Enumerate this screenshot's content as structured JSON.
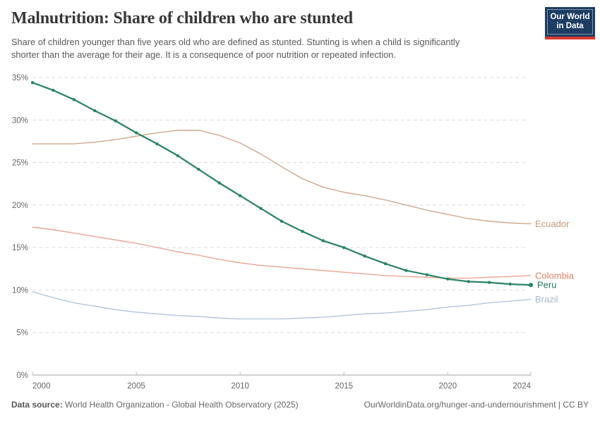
{
  "header": {
    "title": "Malnutrition: Share of children who are stunted",
    "subtitle_line1": "Share of children younger than five years old who are defined as stunted. Stunting is when a child is significantly",
    "subtitle_line2": "shorter than the average for their age. It is a consequence of poor nutrition or repeated infection.",
    "logo": {
      "line1": "Our World",
      "line2": "in Data",
      "bg_color": "#1D3D63",
      "accent_color": "#DC3A2F"
    }
  },
  "chart_data": {
    "type": "line",
    "title": "Malnutrition: Share of children who are stunted",
    "subtitle": "Share of children younger than five years old who are defined as stunted. Stunting is when a child is significantly shorter than the average for their age. It is a consequence of poor nutrition or repeated infection.",
    "xlabel": "",
    "ylabel": "",
    "xlim": [
      2000,
      2024
    ],
    "ylim": [
      0,
      35
    ],
    "yticks": [
      0,
      5,
      10,
      15,
      20,
      25,
      30,
      35
    ],
    "ytick_suffix": "%",
    "xticks": [
      2000,
      2005,
      2010,
      2015,
      2020,
      2024
    ],
    "grid": true,
    "legend_position": "right-end-labels",
    "x": [
      2000,
      2001,
      2002,
      2003,
      2004,
      2005,
      2006,
      2007,
      2008,
      2009,
      2010,
      2011,
      2012,
      2013,
      2014,
      2015,
      2016,
      2017,
      2018,
      2019,
      2020,
      2021,
      2022,
      2023,
      2024
    ],
    "series": [
      {
        "name": "Ecuador",
        "color": "#CDA186",
        "label_color": "#C79B76",
        "line_width": 1.3,
        "markers": false,
        "end_dot": false,
        "values": [
          27.2,
          27.2,
          27.2,
          27.4,
          27.7,
          28.1,
          28.5,
          28.8,
          28.8,
          28.2,
          27.3,
          26.0,
          24.5,
          23.1,
          22.1,
          21.5,
          21.1,
          20.6,
          20.0,
          19.4,
          18.9,
          18.4,
          18.1,
          17.9,
          17.8
        ]
      },
      {
        "name": "Colombia",
        "color": "#E9A08B",
        "label_color": "#E07E5E",
        "line_width": 1.3,
        "markers": false,
        "end_dot": false,
        "values": [
          17.4,
          17.1,
          16.7,
          16.3,
          15.9,
          15.5,
          15.0,
          14.5,
          14.1,
          13.6,
          13.2,
          12.9,
          12.7,
          12.5,
          12.3,
          12.1,
          11.9,
          11.7,
          11.6,
          11.5,
          11.4,
          11.4,
          11.5,
          11.6,
          11.7
        ]
      },
      {
        "name": "Brazil",
        "color": "#AFC2DB",
        "label_color": "#A5B9D5",
        "line_width": 1.3,
        "markers": false,
        "end_dot": false,
        "values": [
          9.8,
          9.1,
          8.5,
          8.1,
          7.7,
          7.4,
          7.2,
          7.0,
          6.9,
          6.7,
          6.6,
          6.6,
          6.6,
          6.7,
          6.8,
          7.0,
          7.2,
          7.3,
          7.5,
          7.7,
          8.0,
          8.2,
          8.5,
          8.7,
          8.9
        ]
      },
      {
        "name": "Peru",
        "color": "#2C8465",
        "label_color": "#257A58",
        "line_width": 2.25,
        "markers": true,
        "end_dot": true,
        "values": [
          34.4,
          33.5,
          32.4,
          31.1,
          29.9,
          28.5,
          27.2,
          25.8,
          24.2,
          22.6,
          21.1,
          19.6,
          18.1,
          16.9,
          15.8,
          15.0,
          14.0,
          13.1,
          12.3,
          11.8,
          11.3,
          11.0,
          10.9,
          10.7,
          10.6
        ]
      }
    ]
  },
  "footer": {
    "datasource_label": "Data source:",
    "datasource_value": " World Health Organization - Global Health Observatory (2025)",
    "link": "OurWorldinData.org/hunger-and-undernourishment",
    "license": " | CC BY"
  }
}
